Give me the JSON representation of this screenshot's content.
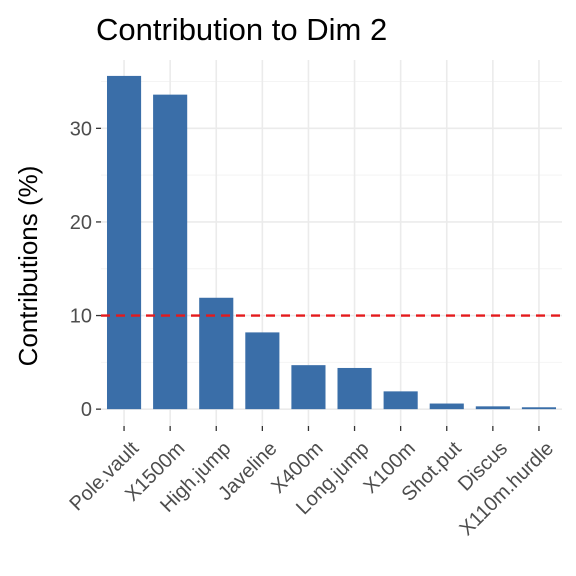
{
  "chart_data": {
    "type": "bar",
    "title": "Contribution to Dim 2",
    "xlabel": "",
    "ylabel": "Contributions (%)",
    "categories": [
      "Pole.vault",
      "X1500m",
      "High.jump",
      "Javeline",
      "X400m",
      "Long.jump",
      "X100m",
      "Shot.put",
      "Discus",
      "X110m.hurdle"
    ],
    "values": [
      35.6,
      33.6,
      11.9,
      8.2,
      4.7,
      4.4,
      1.9,
      0.6,
      0.3,
      0.2
    ],
    "ylim": [
      0,
      37
    ],
    "yticks": [
      0,
      10,
      20,
      30
    ],
    "reference_line": {
      "value": 10,
      "style": "dashed",
      "color": "#e41a1c"
    },
    "bar_color": "#3a6ea8",
    "grid": true,
    "legend": "none"
  }
}
